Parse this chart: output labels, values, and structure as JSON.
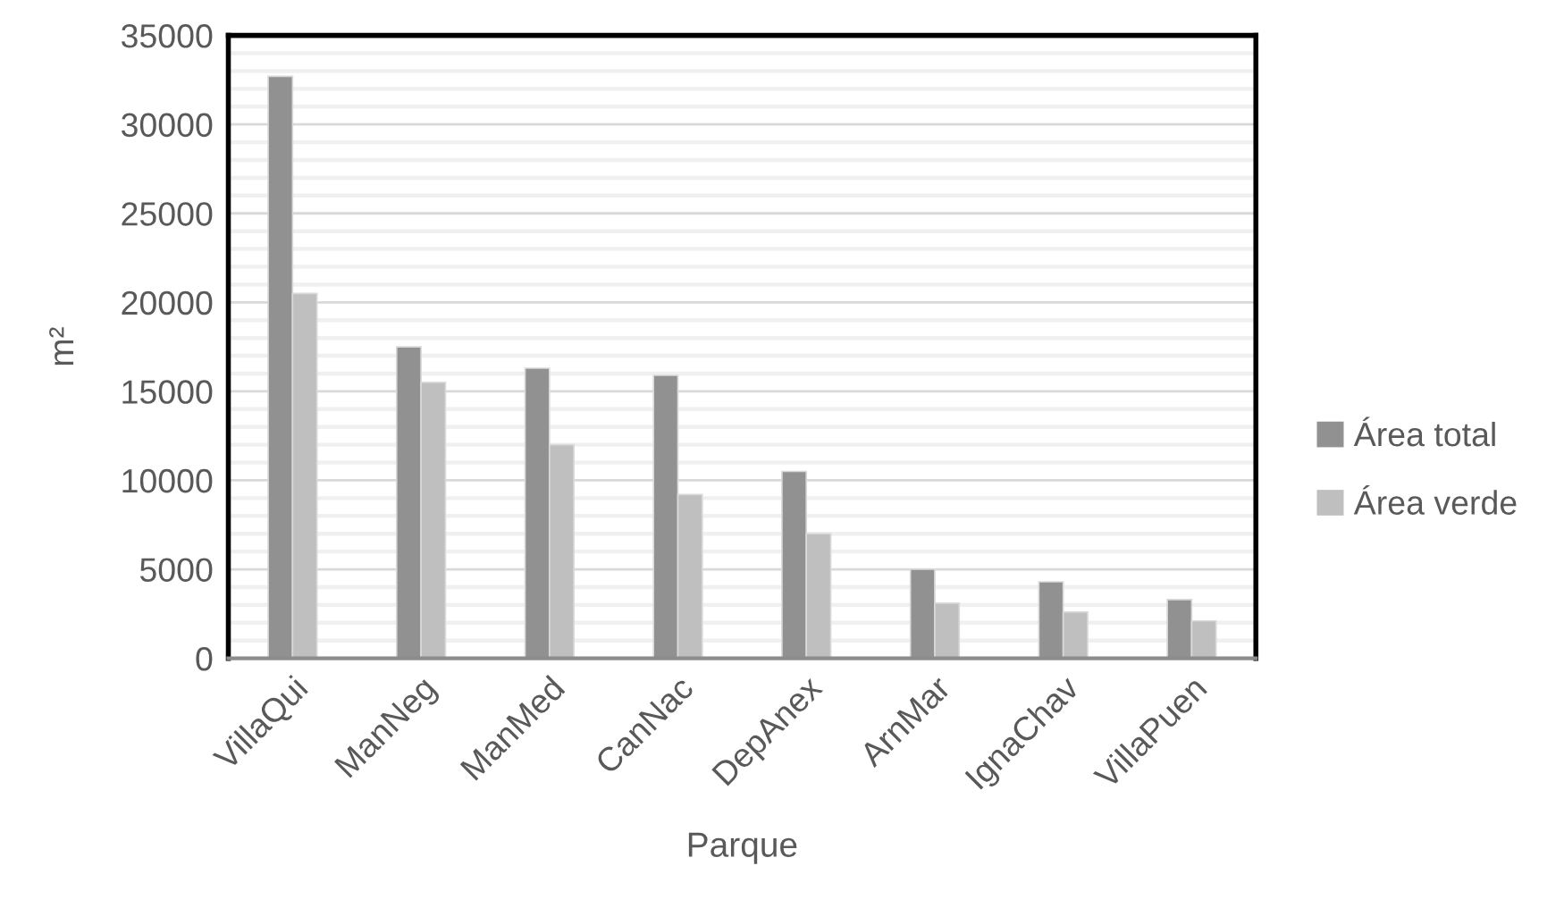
{
  "chart_data": {
    "type": "bar",
    "xlabel": "Parque",
    "ylabel": "m²",
    "categories": [
      "VillaQui",
      "ManNeg",
      "ManMed",
      "CanNac",
      "DepAnex",
      "ArnMar",
      "IgnaChav",
      "VillaPuen"
    ],
    "series": [
      {
        "name": "Área total",
        "color": "#919191",
        "values": [
          32700,
          17500,
          16300,
          15900,
          10500,
          5000,
          4300,
          3300
        ]
      },
      {
        "name": "Área verde",
        "color": "#bfbfbf",
        "values": [
          20500,
          15500,
          12000,
          9200,
          7000,
          3100,
          2600,
          2100
        ]
      }
    ],
    "ylim": [
      0,
      35000
    ],
    "yticks": [
      0,
      {
        "value": 1000,
        "label": null
      },
      {
        "value": 2000,
        "label": null
      },
      {
        "value": 3000,
        "label": null
      },
      {
        "value": 4000,
        "label": null
      },
      5000,
      {
        "value": 6000,
        "label": null
      },
      {
        "value": 7000,
        "label": null
      },
      {
        "value": 8000,
        "label": null
      },
      {
        "value": 9000,
        "label": null
      },
      10000,
      {
        "value": 11000,
        "label": null
      },
      {
        "value": 12000,
        "label": null
      },
      {
        "value": 13000,
        "label": null
      },
      {
        "value": 14000,
        "label": null
      },
      15000,
      {
        "value": 16000,
        "label": null
      },
      {
        "value": 17000,
        "label": null
      },
      {
        "value": 18000,
        "label": null
      },
      {
        "value": 19000,
        "label": null
      },
      20000,
      {
        "value": 21000,
        "label": null
      },
      {
        "value": 22000,
        "label": null
      },
      {
        "value": 23000,
        "label": null
      },
      {
        "value": 24000,
        "label": null
      },
      25000,
      {
        "value": 26000,
        "label": null
      },
      {
        "value": 27000,
        "label": null
      },
      {
        "value": 28000,
        "label": null
      },
      {
        "value": 29000,
        "label": null
      },
      30000,
      {
        "value": 31000,
        "label": null
      },
      {
        "value": 32000,
        "label": null
      },
      {
        "value": 33000,
        "label": null
      },
      {
        "value": 34000,
        "label": null
      },
      35000
    ],
    "grid": "y",
    "legend": "right"
  }
}
